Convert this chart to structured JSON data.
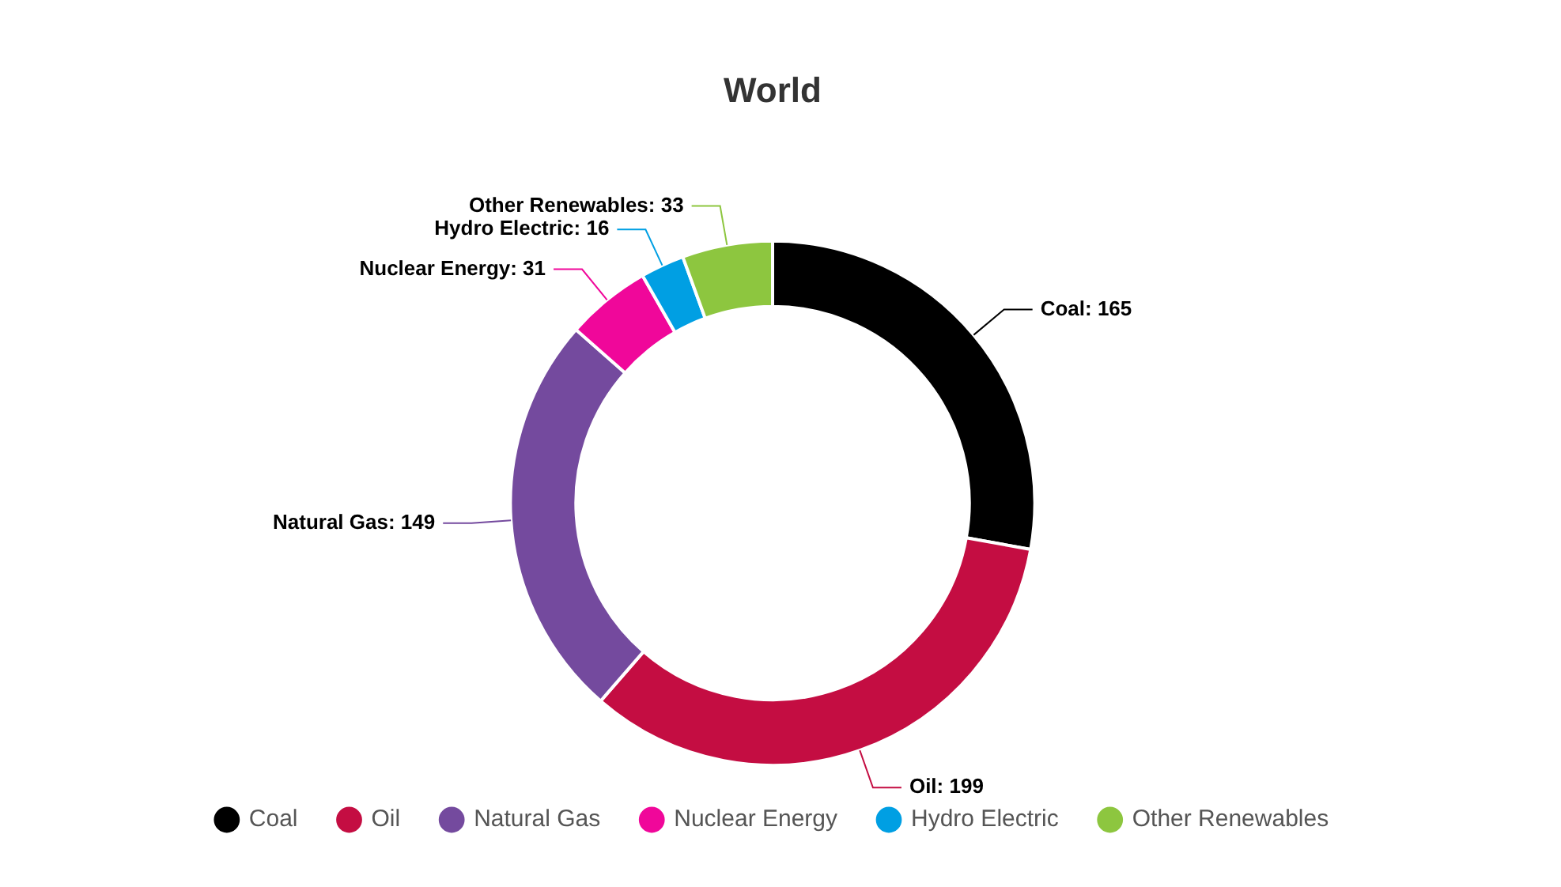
{
  "chart_data": {
    "type": "donut",
    "title": "World",
    "categories": [
      "Coal",
      "Oil",
      "Natural Gas",
      "Nuclear Energy",
      "Hydro Electric",
      "Other Renewables"
    ],
    "values": [
      165,
      199,
      149,
      31,
      16,
      33
    ],
    "value_labels": [
      "Coal: 165",
      "Oil: 199",
      "Natural Gas: 149",
      "Nuclear Energy: 31",
      "Hydro Electric: 16",
      "Other Renewables: 33"
    ],
    "colors": [
      "#000000",
      "#c40d42",
      "#744a9e",
      "#f0079a",
      "#009fe3",
      "#8dc63f"
    ],
    "legend": "bottom"
  }
}
